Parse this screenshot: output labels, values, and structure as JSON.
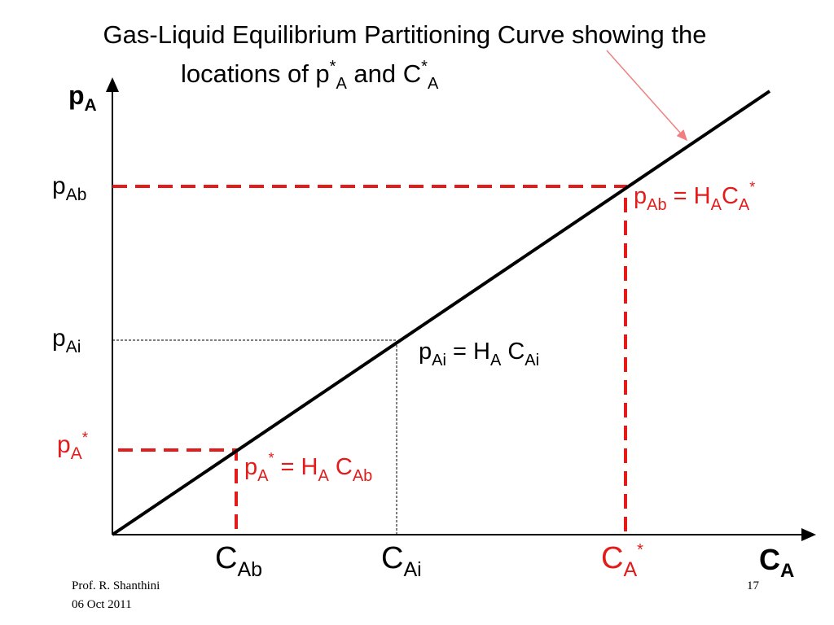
{
  "title": {
    "line1": "Gas-Liquid Equilibrium Partitioning Curve showing the",
    "line2": [
      "locations of p",
      "*",
      "A",
      " and C",
      "*",
      "A"
    ]
  },
  "y_axis_label": [
    "p",
    "A"
  ],
  "x_axis_label": [
    "C",
    "A"
  ],
  "y_labels": {
    "p_Ab": [
      "p",
      "Ab"
    ],
    "p_Ai": [
      "p",
      "Ai"
    ],
    "p_A_star": [
      "p",
      "A",
      "*"
    ]
  },
  "x_labels": {
    "C_Ab": [
      "C",
      "Ab"
    ],
    "C_Ai": [
      "C",
      "Ai"
    ],
    "C_A_star": [
      "C",
      "A",
      "*"
    ]
  },
  "equations": {
    "bulk": [
      "p",
      "Ab",
      " = H",
      "A",
      "C",
      "A",
      "*"
    ],
    "interface": [
      "p",
      "Ai",
      " = H",
      "A",
      " C",
      "Ai"
    ],
    "star": [
      "p",
      "A",
      "*",
      " = H",
      "A",
      " C",
      "Ab"
    ]
  },
  "footer": {
    "author": "Prof. R. Shanthini",
    "date": "06 Oct 2011",
    "page": "17"
  }
}
